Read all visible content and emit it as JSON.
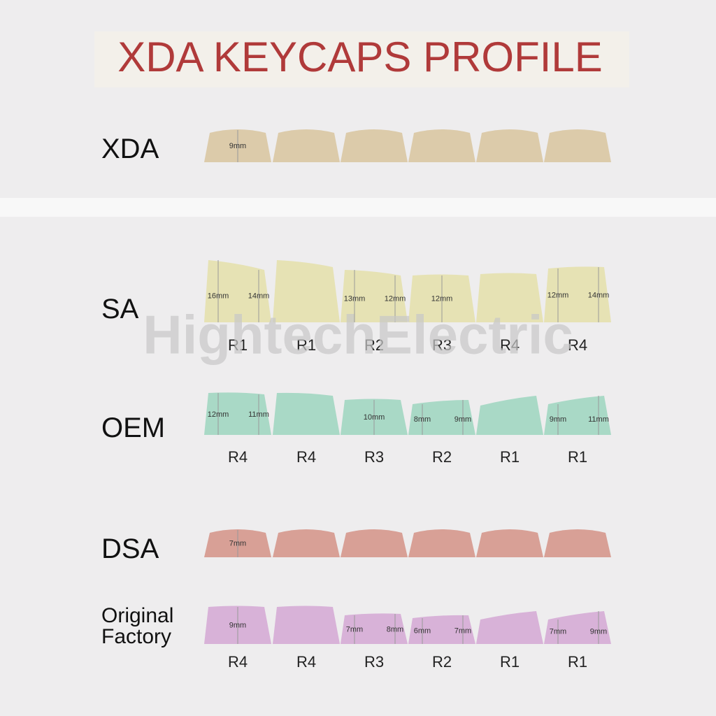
{
  "title": "XDA KEYCAPS PROFILE",
  "watermark": "HightechElectric",
  "profiles": [
    {
      "name": "XDA",
      "measurement": "9mm"
    },
    {
      "name": "SA",
      "keys": [
        {
          "row": "R1",
          "dims": [
            "16mm",
            "14mm"
          ]
        },
        {
          "row": "R1"
        },
        {
          "row": "R2",
          "dims": [
            "13mm",
            "12mm"
          ]
        },
        {
          "row": "R3",
          "dims": [
            "12mm"
          ]
        },
        {
          "row": "R4"
        },
        {
          "row": "R4",
          "dims": [
            "12mm",
            "14mm"
          ]
        }
      ]
    },
    {
      "name": "OEM",
      "keys": [
        {
          "row": "R4",
          "dims": [
            "12mm",
            "11mm"
          ]
        },
        {
          "row": "R4"
        },
        {
          "row": "R3",
          "dims": [
            "10mm"
          ]
        },
        {
          "row": "R2",
          "dims": [
            "8mm",
            "9mm"
          ]
        },
        {
          "row": "R1"
        },
        {
          "row": "R1",
          "dims": [
            "9mm",
            "11mm"
          ]
        }
      ]
    },
    {
      "name": "DSA",
      "measurement": "7mm"
    },
    {
      "name": "Original Factory",
      "keys": [
        {
          "row": "R4",
          "dims": [
            "9mm"
          ]
        },
        {
          "row": "R4"
        },
        {
          "row": "R3",
          "dims": [
            "7mm",
            "8mm"
          ]
        },
        {
          "row": "R2",
          "dims": [
            "6mm",
            "7mm"
          ]
        },
        {
          "row": "R1"
        },
        {
          "row": "R1",
          "dims": [
            "7mm",
            "9mm"
          ]
        }
      ]
    }
  ]
}
